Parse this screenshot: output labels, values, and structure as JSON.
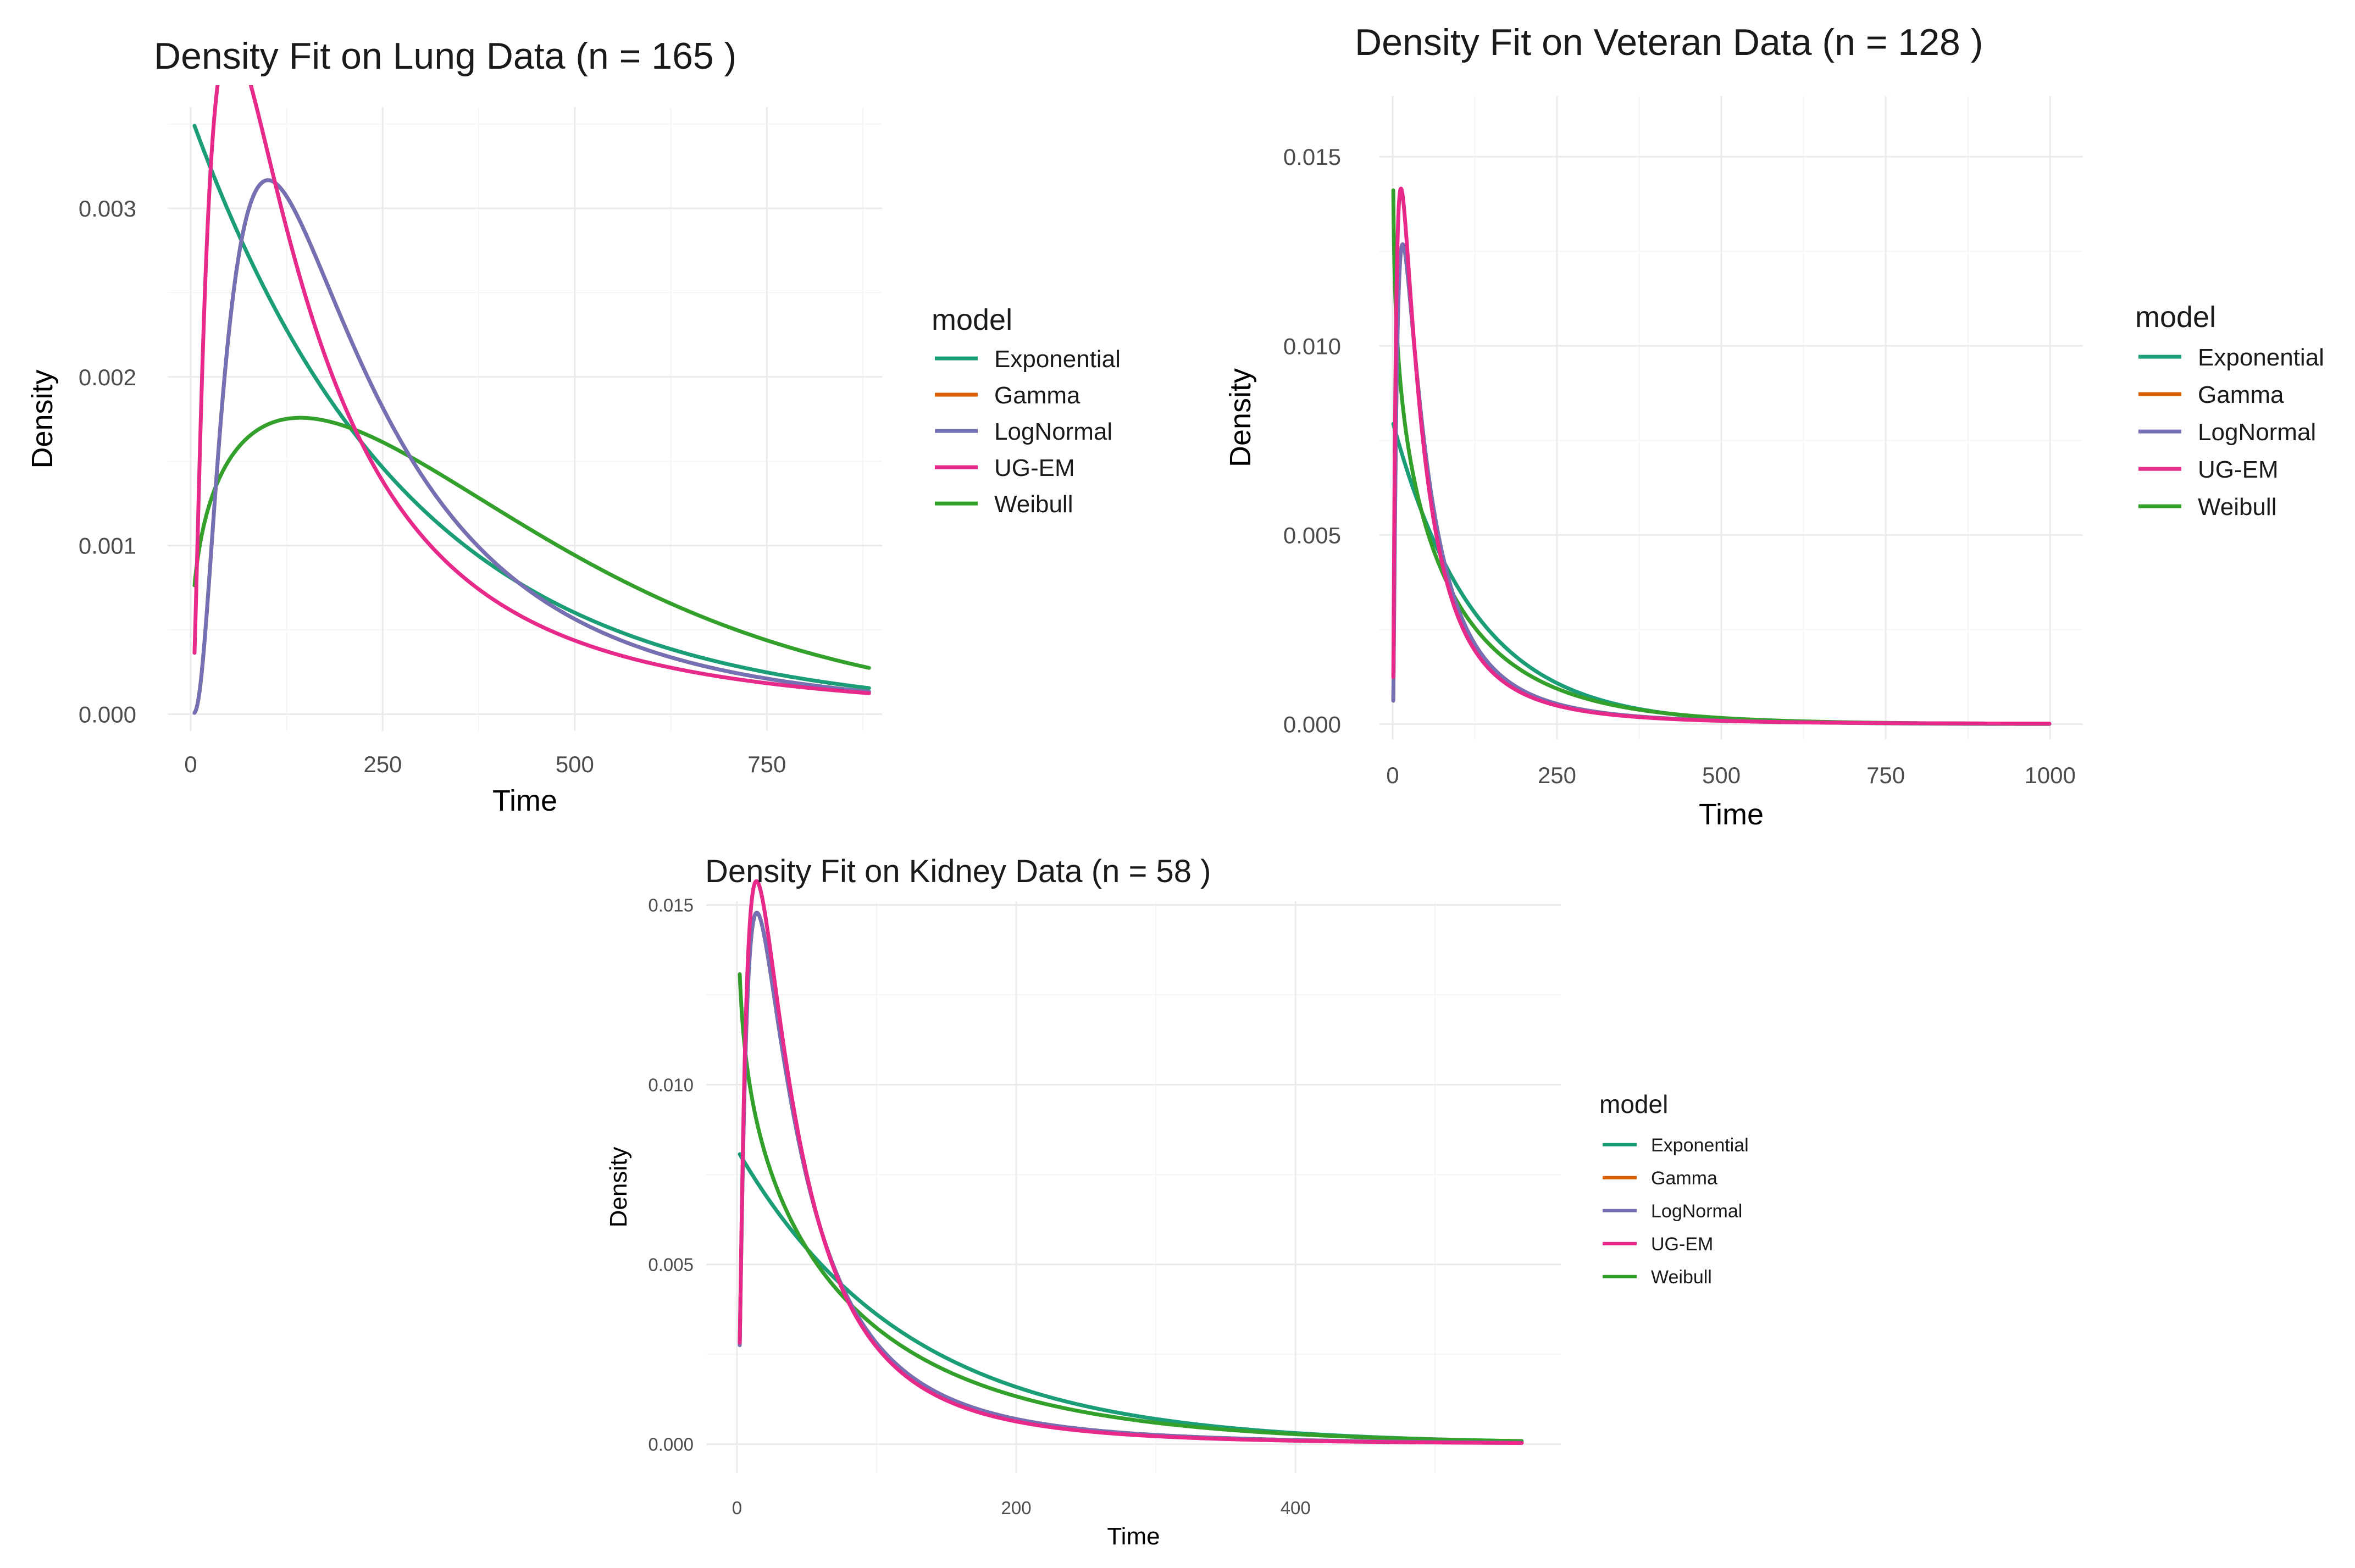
{
  "colors": {
    "Exponential": "#1b9e77",
    "Gamma": "#d95f02",
    "LogNormal": "#7570b3",
    "UG-EM": "#e7298a",
    "Weibull": "#33a02c"
  },
  "chart_data": [
    {
      "type": "line",
      "title": "Density Fit on Lung Data (n = 165 )",
      "xlabel": "Time",
      "ylabel": "Density",
      "xlim": [
        -30,
        900
      ],
      "ylim": [
        -0.0001,
        0.0036
      ],
      "x_ticks": [
        0,
        250,
        500,
        750
      ],
      "x_tick_labels": [
        "0",
        "250",
        "500",
        "750"
      ],
      "y_ticks": [
        0,
        0.001,
        0.002,
        0.003
      ],
      "y_tick_labels": [
        "0.000",
        "0.001",
        "0.002",
        "0.003"
      ],
      "grid": true,
      "legend": {
        "title": "model",
        "position": "right",
        "entries": [
          "Exponential",
          "Gamma",
          "LogNormal",
          "UG-EM",
          "Weibull"
        ]
      },
      "x_range": [
        5,
        883
      ],
      "series": [
        {
          "name": "Exponential",
          "kind": "exp",
          "params": {
            "rate": 0.003552
          }
        },
        {
          "name": "Gamma",
          "kind": "lnorm",
          "params": {
            "mu": 5.356,
            "sigma": 0.862
          }
        },
        {
          "name": "LogNormal",
          "kind": "lnorm",
          "params": {
            "mu": 5.356,
            "sigma": 0.862
          }
        },
        {
          "name": "UG-EM",
          "kind": "lnorm",
          "params": {
            "mu": 5.107,
            "sigma": 1.072
          }
        },
        {
          "name": "Weibull",
          "kind": "weibull",
          "params": {
            "shape": 1.32,
            "scale": 418
          }
        }
      ]
    },
    {
      "type": "line",
      "title": "Density Fit on Veteran Data (n = 128 )",
      "xlabel": "Time",
      "ylabel": "Density",
      "xlim": [
        -20,
        1050
      ],
      "ylim": [
        -0.0004,
        0.0166
      ],
      "x_ticks": [
        0,
        250,
        500,
        750,
        1000
      ],
      "x_tick_labels": [
        "0",
        "250",
        "500",
        "750",
        "1000"
      ],
      "y_ticks": [
        0,
        0.005,
        0.01,
        0.015
      ],
      "y_tick_labels": [
        "0.000",
        "0.005",
        "0.010",
        "0.015"
      ],
      "grid": true,
      "legend": {
        "title": "model",
        "position": "right",
        "entries": [
          "Exponential",
          "Gamma",
          "LogNormal",
          "UG-EM",
          "Weibull"
        ]
      },
      "x_range": [
        1,
        999
      ],
      "series": [
        {
          "name": "Exponential",
          "kind": "exp",
          "params": {
            "rate": 0.008
          }
        },
        {
          "name": "Gamma",
          "kind": "lnorm",
          "params": {
            "mu": 3.96,
            "sigma": 1.11
          }
        },
        {
          "name": "LogNormal",
          "kind": "lnorm",
          "params": {
            "mu": 3.96,
            "sigma": 1.11
          }
        },
        {
          "name": "UG-EM",
          "kind": "lnorm",
          "params": {
            "mu": 3.86,
            "sigma": 1.15
          }
        },
        {
          "name": "Weibull",
          "kind": "weibull",
          "params": {
            "shape": 0.87,
            "scale": 112
          }
        }
      ]
    },
    {
      "type": "line",
      "title": "Density Fit on Kidney Data (n = 58 )",
      "xlabel": "Time",
      "ylabel": "Density",
      "xlim": [
        -22,
        590
      ],
      "ylim": [
        -0.0008,
        0.0151
      ],
      "x_ticks": [
        0,
        200,
        400
      ],
      "x_tick_labels": [
        "0",
        "200",
        "400"
      ],
      "y_ticks": [
        0,
        0.005,
        0.01,
        0.015
      ],
      "y_tick_labels": [
        "0.000",
        "0.005",
        "0.010",
        "0.015"
      ],
      "grid": true,
      "legend": {
        "title": "model",
        "position": "right",
        "entries": [
          "Exponential",
          "Gamma",
          "LogNormal",
          "UG-EM",
          "Weibull"
        ]
      },
      "x_range": [
        2,
        562
      ],
      "series": [
        {
          "name": "Exponential",
          "kind": "exp",
          "params": {
            "rate": 0.0082
          }
        },
        {
          "name": "Gamma",
          "kind": "lnorm",
          "params": {
            "mu": 3.8,
            "sigma": 1.07
          }
        },
        {
          "name": "LogNormal",
          "kind": "lnorm",
          "params": {
            "mu": 3.8,
            "sigma": 1.07
          }
        },
        {
          "name": "UG-EM",
          "kind": "lnorm",
          "params": {
            "mu": 3.74,
            "sigma": 1.05
          }
        },
        {
          "name": "Weibull",
          "kind": "weibull",
          "params": {
            "shape": 0.88,
            "scale": 105
          }
        }
      ]
    }
  ]
}
